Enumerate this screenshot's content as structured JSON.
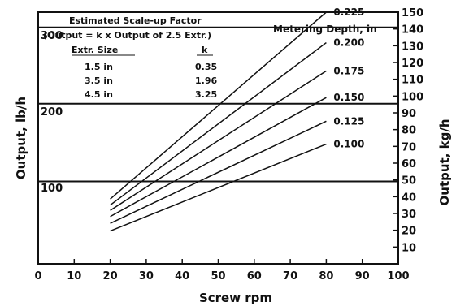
{
  "chart_data": {
    "type": "line",
    "xlabel": "Screw rpm",
    "ylabel": "Output, lb/h",
    "ylabel_right": "Output, kg/h",
    "xlim": [
      0,
      100
    ],
    "ylim": [
      0,
      330
    ],
    "ylim_right": [
      0,
      150
    ],
    "x_ticks": [
      "0",
      "10",
      "20",
      "30",
      "40",
      "50",
      "60",
      "70",
      "80",
      "90",
      "100"
    ],
    "y_ticks": [
      "100",
      "200",
      "300"
    ],
    "y_ticks_right": [
      "10",
      "20",
      "30",
      "40",
      "50",
      "60",
      "70",
      "80",
      "90",
      "100",
      "110",
      "120",
      "130",
      "140",
      "150"
    ],
    "gridlines_y": [
      108,
      210,
      310
    ],
    "series_legend_title": "Metering Depth, in",
    "series": [
      {
        "name": "0.225",
        "points": [
          [
            20,
            85
          ],
          [
            80,
            330
          ]
        ]
      },
      {
        "name": "0.200",
        "points": [
          [
            20,
            77
          ],
          [
            80,
            290
          ]
        ]
      },
      {
        "name": "0.175",
        "points": [
          [
            20,
            70
          ],
          [
            80,
            253
          ]
        ]
      },
      {
        "name": "0.150",
        "points": [
          [
            20,
            62
          ],
          [
            80,
            218
          ]
        ]
      },
      {
        "name": "0.125",
        "points": [
          [
            20,
            53
          ],
          [
            80,
            187
          ]
        ]
      },
      {
        "name": "0.100",
        "points": [
          [
            20,
            43
          ],
          [
            80,
            157
          ]
        ]
      }
    ],
    "inset": {
      "title": "Estimated Scale-up Factor",
      "formula": "(Output = k x Output of 2.5 Extr.)",
      "col_headers": [
        "Extr. Size",
        "k"
      ],
      "rows": [
        [
          "1.5 in",
          "0.35"
        ],
        [
          "3.5 in",
          "1.96"
        ],
        [
          "4.5 in",
          "3.25"
        ]
      ]
    }
  }
}
